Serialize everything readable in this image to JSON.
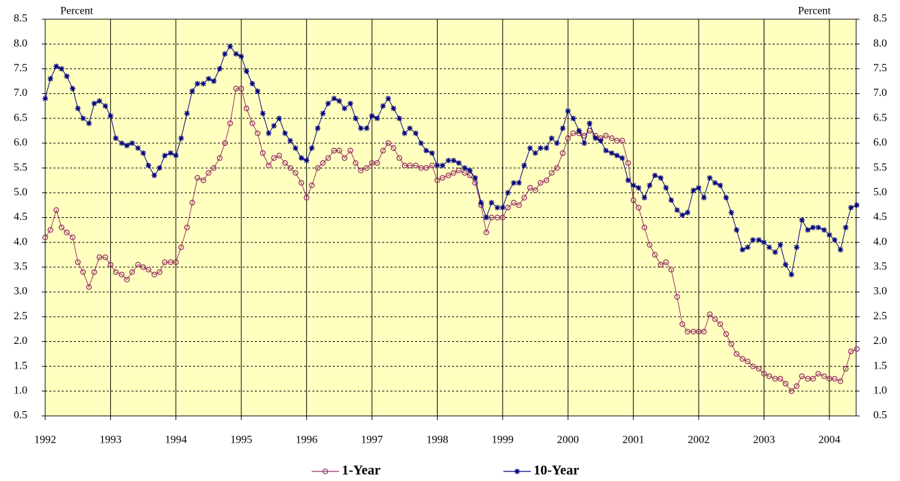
{
  "chart_data": {
    "type": "line",
    "y_label": "Percent",
    "y2_label": "Percent",
    "x": [
      1992.0,
      1992.08,
      1992.17,
      1992.25,
      1992.33,
      1992.42,
      1992.5,
      1992.58,
      1992.67,
      1992.75,
      1992.83,
      1992.92,
      1993.0,
      1993.08,
      1993.17,
      1993.25,
      1993.33,
      1993.42,
      1993.5,
      1993.58,
      1993.67,
      1993.75,
      1993.83,
      1993.92,
      1994.0,
      1994.08,
      1994.17,
      1994.25,
      1994.33,
      1994.42,
      1994.5,
      1994.58,
      1994.67,
      1994.75,
      1994.83,
      1994.92,
      1995.0,
      1995.08,
      1995.17,
      1995.25,
      1995.33,
      1995.42,
      1995.5,
      1995.58,
      1995.67,
      1995.75,
      1995.83,
      1995.92,
      1996.0,
      1996.08,
      1996.17,
      1996.25,
      1996.33,
      1996.42,
      1996.5,
      1996.58,
      1996.67,
      1996.75,
      1996.83,
      1996.92,
      1997.0,
      1997.08,
      1997.17,
      1997.25,
      1997.33,
      1997.42,
      1997.5,
      1997.58,
      1997.67,
      1997.75,
      1997.83,
      1997.92,
      1998.0,
      1998.08,
      1998.17,
      1998.25,
      1998.33,
      1998.42,
      1998.5,
      1998.58,
      1998.67,
      1998.75,
      1998.83,
      1998.92,
      1999.0,
      1999.08,
      1999.17,
      1999.25,
      1999.33,
      1999.42,
      1999.5,
      1999.58,
      1999.67,
      1999.75,
      1999.83,
      1999.92,
      2000.0,
      2000.08,
      2000.17,
      2000.25,
      2000.33,
      2000.42,
      2000.5,
      2000.58,
      2000.67,
      2000.75,
      2000.83,
      2000.92,
      2001.0,
      2001.08,
      2001.17,
      2001.25,
      2001.33,
      2001.42,
      2001.5,
      2001.58,
      2001.67,
      2001.75,
      2001.83,
      2001.92,
      2002.0,
      2002.08,
      2002.17,
      2002.25,
      2002.33,
      2002.42,
      2002.5,
      2002.58,
      2002.67,
      2002.75,
      2002.83,
      2002.92,
      2003.0,
      2003.08,
      2003.17,
      2003.25,
      2003.33,
      2003.42,
      2003.5,
      2003.58,
      2003.67,
      2003.75,
      2003.83,
      2003.92,
      2004.0,
      2004.08,
      2004.17,
      2004.25,
      2004.33,
      2004.42
    ],
    "series": [
      {
        "name": "1-Year",
        "color": "#993366",
        "marker": "circle",
        "values": [
          4.1,
          4.25,
          4.65,
          4.3,
          4.2,
          4.1,
          3.6,
          3.4,
          3.1,
          3.4,
          3.7,
          3.7,
          3.55,
          3.4,
          3.35,
          3.25,
          3.4,
          3.55,
          3.5,
          3.45,
          3.35,
          3.4,
          3.6,
          3.6,
          3.6,
          3.9,
          4.3,
          4.8,
          5.3,
          5.25,
          5.4,
          5.5,
          5.7,
          6.0,
          6.4,
          7.1,
          7.1,
          6.7,
          6.4,
          6.2,
          5.8,
          5.55,
          5.7,
          5.75,
          5.6,
          5.5,
          5.4,
          5.2,
          4.9,
          5.15,
          5.5,
          5.6,
          5.7,
          5.85,
          5.85,
          5.7,
          5.85,
          5.6,
          5.45,
          5.5,
          5.6,
          5.6,
          5.85,
          6.0,
          5.9,
          5.7,
          5.55,
          5.55,
          5.55,
          5.5,
          5.5,
          5.55,
          5.25,
          5.3,
          5.35,
          5.4,
          5.45,
          5.4,
          5.35,
          5.2,
          4.75,
          4.2,
          4.5,
          4.5,
          4.5,
          4.7,
          4.8,
          4.75,
          4.9,
          5.1,
          5.05,
          5.2,
          5.25,
          5.4,
          5.5,
          5.8,
          6.1,
          6.2,
          6.2,
          6.15,
          6.25,
          6.15,
          6.1,
          6.15,
          6.1,
          6.05,
          6.05,
          5.6,
          4.85,
          4.7,
          4.3,
          3.95,
          3.75,
          3.55,
          3.6,
          3.45,
          2.9,
          2.35,
          2.2,
          2.2,
          2.2,
          2.2,
          2.55,
          2.45,
          2.35,
          2.15,
          1.95,
          1.75,
          1.65,
          1.6,
          1.5,
          1.45,
          1.35,
          1.3,
          1.25,
          1.25,
          1.15,
          1.0,
          1.1,
          1.3,
          1.25,
          1.25,
          1.35,
          1.3,
          1.25,
          1.25,
          1.2,
          1.45,
          1.8,
          1.85
        ]
      },
      {
        "name": "10-Year",
        "color": "#000080",
        "marker": "asterisk",
        "values": [
          6.9,
          7.3,
          7.55,
          7.5,
          7.35,
          7.1,
          6.7,
          6.5,
          6.4,
          6.8,
          6.85,
          6.75,
          6.55,
          6.1,
          6.0,
          5.95,
          6.0,
          5.9,
          5.8,
          5.55,
          5.35,
          5.5,
          5.75,
          5.8,
          5.75,
          6.1,
          6.6,
          7.05,
          7.2,
          7.2,
          7.3,
          7.25,
          7.5,
          7.8,
          7.95,
          7.8,
          7.75,
          7.45,
          7.2,
          7.05,
          6.6,
          6.2,
          6.35,
          6.5,
          6.2,
          6.05,
          5.9,
          5.7,
          5.65,
          5.9,
          6.3,
          6.6,
          6.8,
          6.9,
          6.85,
          6.7,
          6.8,
          6.5,
          6.3,
          6.3,
          6.55,
          6.5,
          6.75,
          6.9,
          6.7,
          6.5,
          6.2,
          6.3,
          6.2,
          6.0,
          5.85,
          5.8,
          5.55,
          5.55,
          5.65,
          5.65,
          5.6,
          5.5,
          5.45,
          5.3,
          4.8,
          4.5,
          4.8,
          4.7,
          4.7,
          5.0,
          5.2,
          5.2,
          5.55,
          5.9,
          5.8,
          5.9,
          5.9,
          6.1,
          6.0,
          6.3,
          6.65,
          6.5,
          6.25,
          6.0,
          6.4,
          6.1,
          6.05,
          5.85,
          5.8,
          5.75,
          5.7,
          5.25,
          5.15,
          5.1,
          4.9,
          5.15,
          5.35,
          5.3,
          5.1,
          4.85,
          4.65,
          4.55,
          4.6,
          5.05,
          5.1,
          4.9,
          5.3,
          5.2,
          5.15,
          4.9,
          4.6,
          4.25,
          3.85,
          3.9,
          4.05,
          4.05,
          4.0,
          3.9,
          3.8,
          3.95,
          3.55,
          3.35,
          3.9,
          4.45,
          4.25,
          4.3,
          4.3,
          4.25,
          4.15,
          4.05,
          3.85,
          4.3,
          4.7,
          4.75
        ]
      }
    ],
    "xlim": [
      1992,
      2004.41
    ],
    "xticks": [
      1992,
      1993,
      1994,
      1995,
      1996,
      1997,
      1998,
      1999,
      2000,
      2001,
      2002,
      2003,
      2004
    ],
    "ylim": [
      0.5,
      8.5
    ],
    "yticks": [
      0.5,
      {
        "value": 1,
        "label": "1.0"
      },
      1.5,
      {
        "value": 2,
        "label": "2.0"
      },
      2.5,
      {
        "value": 3,
        "label": "3.0"
      },
      3.5,
      {
        "value": 4,
        "label": "4.0"
      },
      4.5,
      {
        "value": 5,
        "label": "5.0"
      },
      5.5,
      {
        "value": 6,
        "label": "6.0"
      },
      6.5,
      {
        "value": 7,
        "label": "7.0"
      },
      7.5,
      {
        "value": 8,
        "label": "8.0"
      },
      8.5
    ],
    "y2lim": [
      0.5,
      8.5
    ],
    "y2ticks": [
      0.5,
      {
        "value": 1,
        "label": "1.0"
      },
      1.5,
      {
        "value": 2,
        "label": "2.0"
      },
      2.5,
      {
        "value": 3,
        "label": "3.0"
      },
      3.5,
      {
        "value": 4,
        "label": "4.0"
      },
      4.5,
      {
        "value": 5,
        "label": "5.0"
      },
      5.5,
      {
        "value": 6,
        "label": "6.0"
      },
      6.5,
      {
        "value": 7,
        "label": "7.0"
      },
      7.5,
      {
        "value": 8,
        "label": "8.0"
      },
      8.5
    ],
    "grid": true,
    "plot_background": "#ffffc0",
    "legend": "bottom"
  }
}
